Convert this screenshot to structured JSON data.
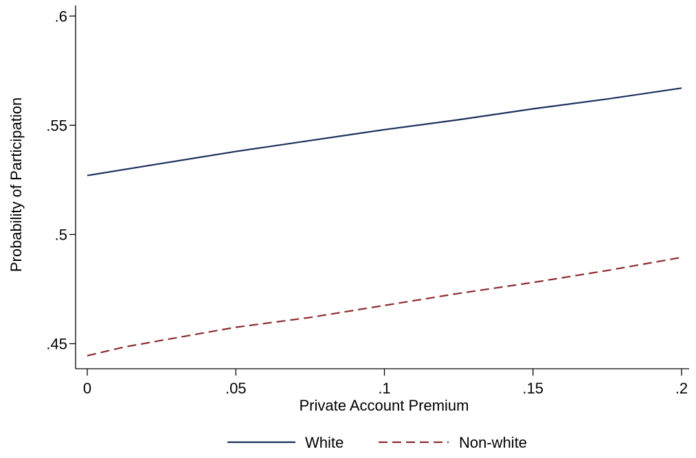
{
  "chart_data": {
    "type": "line",
    "title": "",
    "xlabel": "Private Account Premium",
    "ylabel": "Probability of Participation",
    "xlim": [
      0,
      0.2
    ],
    "ylim": [
      0.44,
      0.605
    ],
    "x_ticks": [
      0,
      0.05,
      0.1,
      0.15,
      0.2
    ],
    "x_tick_labels": [
      "0",
      ".05",
      ".1",
      ".15",
      ".2"
    ],
    "y_ticks": [
      0.45,
      0.5,
      0.55,
      0.6
    ],
    "y_tick_labels": [
      ".45",
      ".5",
      ".55",
      ".6"
    ],
    "grid": false,
    "legend_position": "bottom",
    "series": [
      {
        "name": "White",
        "color": "#1a2e5c",
        "style": "solid",
        "x": [
          0,
          0.025,
          0.05,
          0.075,
          0.1,
          0.125,
          0.15,
          0.175,
          0.2
        ],
        "y": [
          0.527,
          0.5325,
          0.538,
          0.543,
          0.548,
          0.5525,
          0.5575,
          0.562,
          0.567
        ]
      },
      {
        "name": "Non-white",
        "color": "#8b2a2e",
        "style": "dashed",
        "x": [
          0,
          0.0125,
          0.025,
          0.05,
          0.075,
          0.1,
          0.125,
          0.15,
          0.175,
          0.2
        ],
        "y": [
          0.4445,
          0.4485,
          0.4515,
          0.4575,
          0.462,
          0.4675,
          0.473,
          0.478,
          0.4835,
          0.4895
        ]
      }
    ]
  }
}
